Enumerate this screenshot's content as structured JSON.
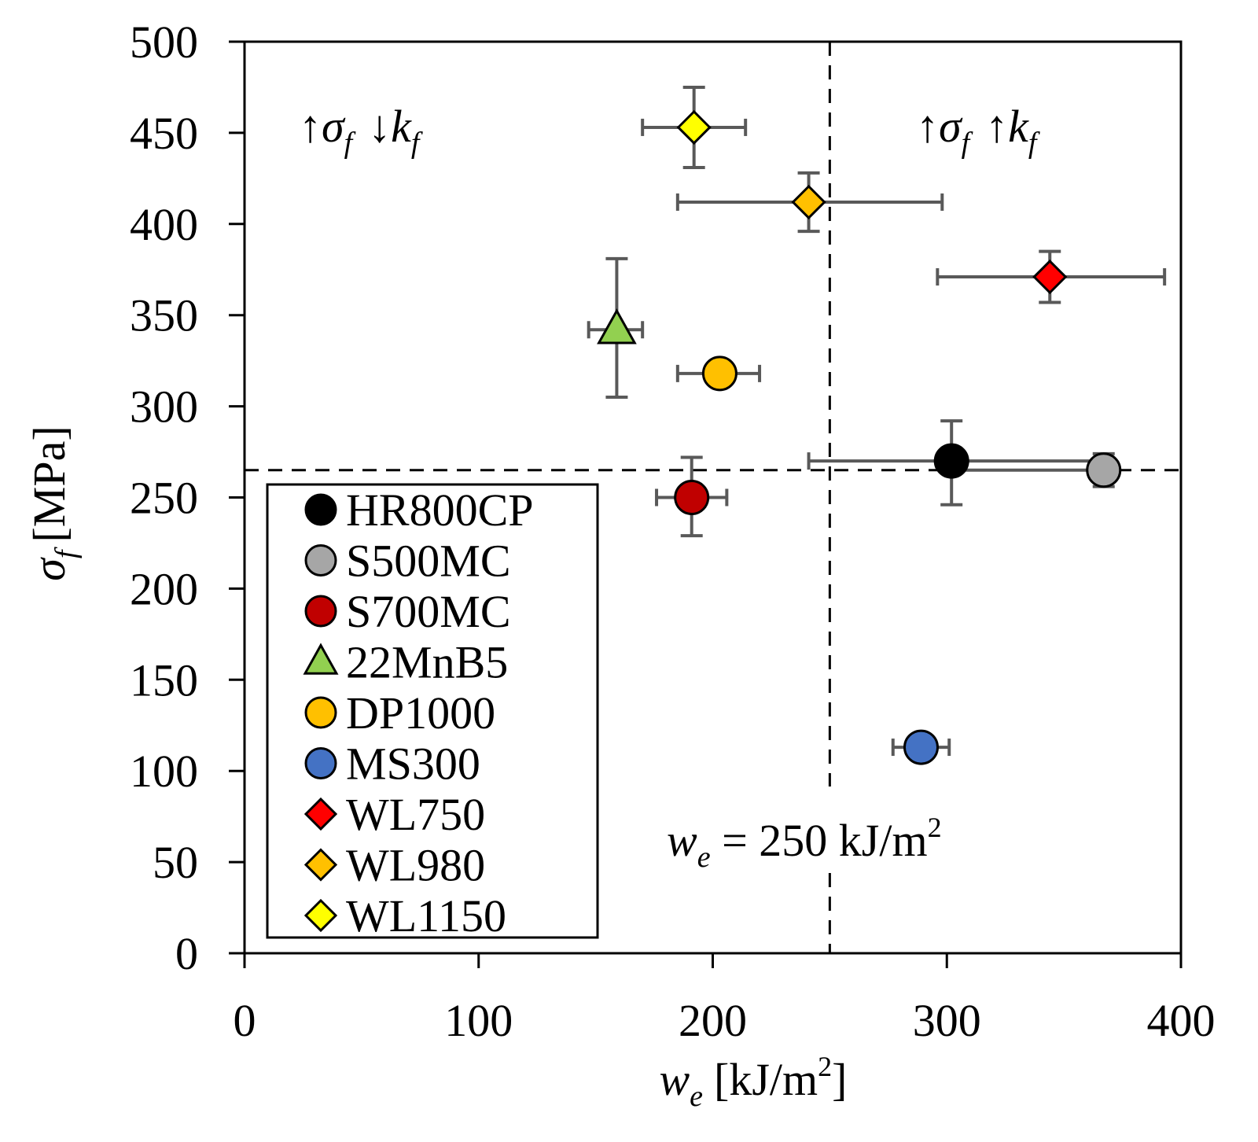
{
  "chart_data": {
    "type": "scatter",
    "title": "",
    "xlabel": {
      "symbol": "w",
      "sub": "e",
      "unit": "[kJ/m",
      "sup": "2",
      "close": "]"
    },
    "ylabel": {
      "symbol": "σ",
      "sub": "f",
      "unit": "[MPa]"
    },
    "xlim": [
      0,
      400
    ],
    "ylim": [
      0,
      500
    ],
    "x_ticks": [
      0,
      100,
      200,
      300,
      400
    ],
    "x_tick_labels": [
      "0",
      "100",
      "200",
      "300",
      "400"
    ],
    "y_ticks": [
      0,
      50,
      100,
      150,
      200,
      250,
      300,
      350,
      400,
      450,
      500
    ],
    "y_tick_labels": [
      "0",
      "50",
      "100",
      "150",
      "200",
      "250",
      "300",
      "350",
      "400",
      "450",
      "500"
    ],
    "grid": false,
    "legend_position": "bottom-left",
    "reference_lines": {
      "x": 250,
      "y": 265
    },
    "series": [
      {
        "name": "HR800CP",
        "marker": "circle",
        "color": "#000000",
        "x": 302,
        "y": 270,
        "xerr": [
          241,
          366
        ],
        "yerr": [
          246,
          292
        ]
      },
      {
        "name": "S500MC",
        "marker": "circle",
        "color": "#a6a6a6",
        "x": 367,
        "y": 265,
        "xerr": [
          302,
          367
        ],
        "yerr": [
          256,
          274
        ]
      },
      {
        "name": "S700MC",
        "marker": "circle",
        "color": "#c00000",
        "x": 191,
        "y": 250,
        "xerr": [
          176,
          206
        ],
        "yerr": [
          229,
          272
        ]
      },
      {
        "name": "22MnB5",
        "marker": "triangle",
        "color": "#92d050",
        "x": 159,
        "y": 342,
        "xerr": [
          147,
          170
        ],
        "yerr": [
          305,
          381
        ]
      },
      {
        "name": "DP1000",
        "marker": "circle",
        "color": "#ffc000",
        "x": 203,
        "y": 318,
        "xerr": [
          185,
          220
        ],
        "yerr": [
          318,
          318
        ]
      },
      {
        "name": "MS300",
        "marker": "circle",
        "color": "#4472c4",
        "x": 289,
        "y": 113,
        "xerr": [
          277,
          301
        ],
        "yerr": [
          113,
          113
        ]
      },
      {
        "name": "WL750",
        "marker": "diamond",
        "color": "#ff0000",
        "x": 344,
        "y": 371,
        "xerr": [
          296,
          393
        ],
        "yerr": [
          357,
          385
        ]
      },
      {
        "name": "WL980",
        "marker": "diamond",
        "color": "#ffc000",
        "x": 241,
        "y": 412,
        "xerr": [
          185,
          298
        ],
        "yerr": [
          396,
          428
        ]
      },
      {
        "name": "WL1150",
        "marker": "diamond",
        "color": "#ffff00",
        "x": 192,
        "y": 453,
        "xerr": [
          170,
          214
        ],
        "yerr": [
          431,
          475
        ]
      }
    ],
    "annotations": {
      "top_left": {
        "arrow1": "↑",
        "sym1": "σ",
        "sub1": "f",
        "arrow2": "↓",
        "sym2": "k",
        "sub2": "f"
      },
      "top_right": {
        "arrow1": "↑",
        "sym1": "σ",
        "sub1": "f",
        "arrow2": "↑",
        "sym2": "k",
        "sub2": "f"
      },
      "vline_label": {
        "sym": "w",
        "sub": "e",
        "text": " = 250 kJ/m",
        "sup": "2"
      }
    }
  }
}
